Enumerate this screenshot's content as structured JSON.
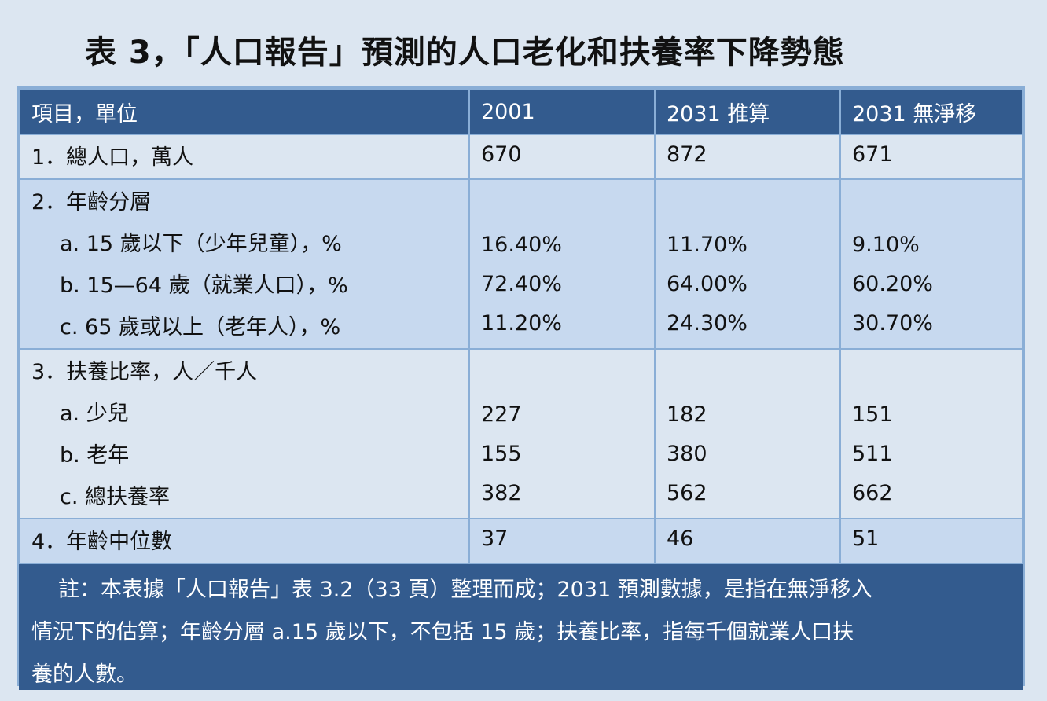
{
  "title": "表 3，「人口報告」預測的人口老化和扶養率下降勢態",
  "header": [
    "項目，單位",
    "2001",
    "2031 推算",
    "2031 無淨移"
  ],
  "rows": {
    "total": {
      "label": "1．總人口，萬人",
      "v2001": "670",
      "v2031": "872",
      "vnomig": "671"
    },
    "age": {
      "label": "2．年齡分層",
      "sub": [
        {
          "label": "a. 15 歲以下（少年兒童），%",
          "v2001": "16.40%",
          "v2031": "11.70%",
          "vnomig": "9.10%"
        },
        {
          "label": "b. 15—64 歲（就業人口），%",
          "v2001": "72.40%",
          "v2031": "64.00%",
          "vnomig": "60.20%"
        },
        {
          "label": "c. 65 歲或以上（老年人），%",
          "v2001": "11.20%",
          "v2031": "24.30%",
          "vnomig": "30.70%"
        }
      ]
    },
    "dep": {
      "label": "3．扶養比率，人／千人",
      "sub": [
        {
          "label": "a.  少兒",
          "v2001": "227",
          "v2031": "182",
          "vnomig": "151"
        },
        {
          "label": "b.  老年",
          "v2001": "155",
          "v2031": "380",
          "vnomig": "511"
        },
        {
          "label": "c.  總扶養率",
          "v2001": "382",
          "v2031": "562",
          "vnomig": "662"
        }
      ]
    },
    "median": {
      "label": "4．年齡中位數",
      "v2001": "37",
      "v2031": "46",
      "vnomig": "51"
    }
  },
  "note": [
    "註：本表據「人口報告」表 3.2（33 頁）整理而成；2031 預測數據，是指在無淨移入",
    "情況下的估算；年齡分層 a.15 歲以下，不包括 15 歲；扶養比率，指每千個就業人口扶",
    "養的人數。"
  ]
}
